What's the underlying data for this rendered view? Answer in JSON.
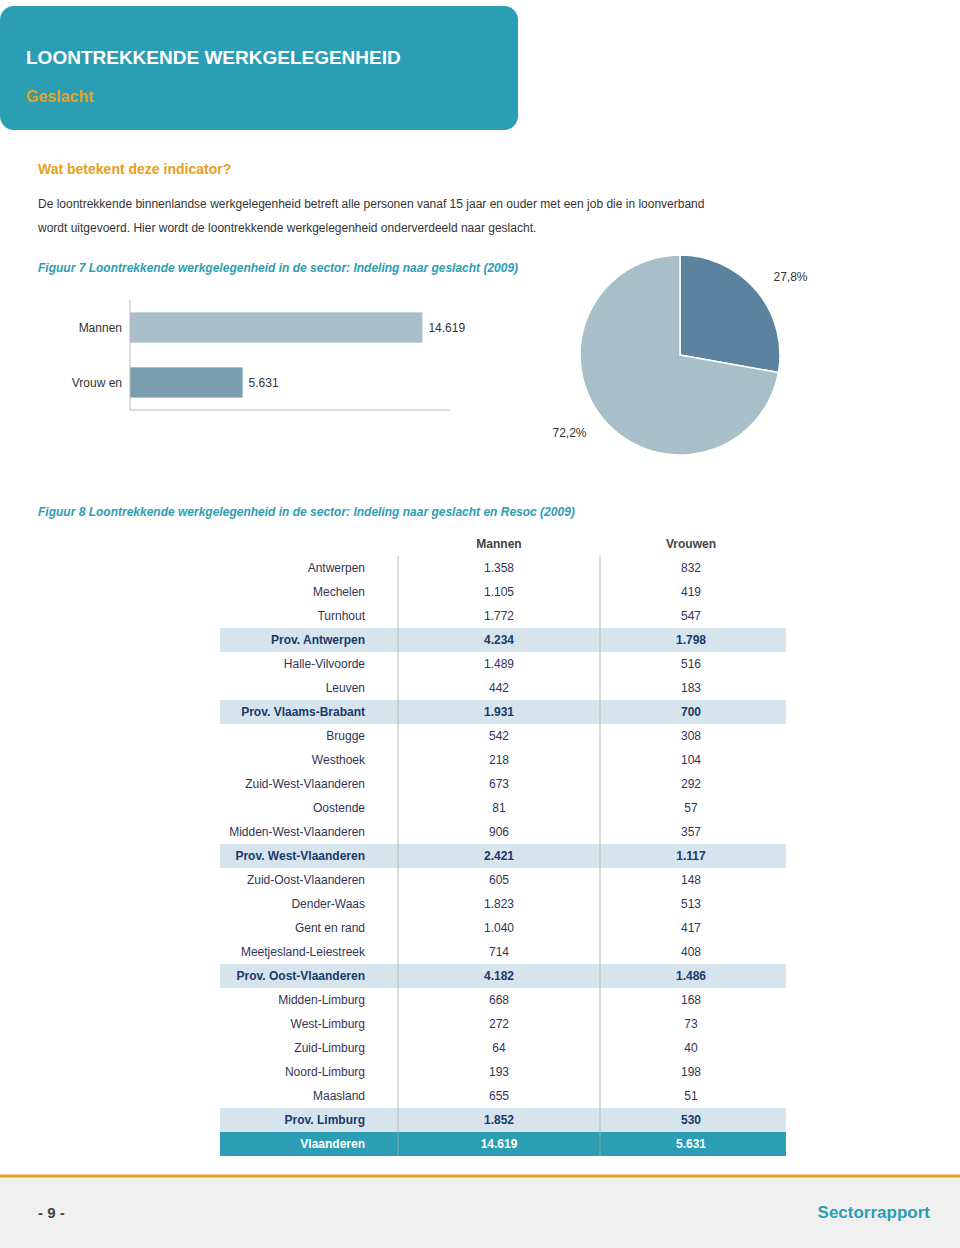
{
  "title": "LOONTREKKENDE WERKGELEGENHEID",
  "subtitle": "Geslacht",
  "annotations": [
    "Wat betekent deze indicator?",
    "De loontrekkende binnenlandse werkgelegenheid betreft alle personen vanaf 15 jaar en ouder met een job die in loonverband",
    "wordt uitgevoerd. Hier wordt de loontrekkende werkgelegenheid onderverdeeld naar geslacht.",
    "- 9 -",
    "Sectorrapport"
  ],
  "chart_data": [
    {
      "type": "bar",
      "title": "Figuur 7  Loontrekkende werkgelegenheid in de sector: Indeling naar geslacht (2009)",
      "orientation": "horizontal",
      "categories": [
        "Mannen",
        "Vrouw en"
      ],
      "values": [
        14619,
        5631
      ],
      "value_labels": [
        "14.619",
        "5.631"
      ],
      "colors": [
        "#A8BFC9",
        "#7A9DB0"
      ],
      "xlim": [
        0,
        16000
      ],
      "data_labels": true,
      "tick_labels": "y",
      "grid": false
    },
    {
      "type": "pie",
      "values": [
        27.8,
        72.2
      ],
      "value_labels": [
        "27,8%",
        "72,2%"
      ],
      "colors": [
        "#5B83A0",
        "#A8BFC9"
      ],
      "data_labels": true
    },
    {
      "type": "table",
      "title": "Figuur 8  Loontrekkende werkgelegenheid in de sector: Indeling naar geslacht en Resoc (2009)",
      "categories": [
        "Antwerpen",
        "Mechelen",
        "Turnhout",
        "Prov. Antwerpen",
        "Halle-Vilvoorde",
        "Leuven",
        "Prov. Vlaams-Brabant",
        "Brugge",
        "Westhoek",
        "Zuid-West-Vlaanderen",
        "Oostende",
        "Midden-West-Vlaanderen",
        "Prov. West-Vlaanderen",
        "Zuid-Oost-Vlaanderen",
        "Dender-Waas",
        "Gent en rand",
        "Meetjesland-Leiestreek",
        "Prov. Oost-Vlaanderen",
        "Midden-Limburg",
        "West-Limburg",
        "Zuid-Limburg",
        "Noord-Limburg",
        "Maasland",
        "Prov. Limburg",
        "Vlaanderen"
      ],
      "colors": [
        null,
        null,
        null,
        "#D6E4ED",
        null,
        null,
        "#D6E4ED",
        null,
        null,
        null,
        null,
        null,
        "#D6E4ED",
        null,
        null,
        null,
        null,
        "#D6E4ED",
        null,
        null,
        null,
        null,
        null,
        "#D6E4ED",
        "#2B9EB3"
      ],
      "series": [
        {
          "name": "Mannen",
          "values": [
            1358,
            1105,
            1772,
            4234,
            1489,
            442,
            1931,
            542,
            218,
            673,
            81,
            906,
            2421,
            605,
            1823,
            1040,
            714,
            4182,
            668,
            272,
            64,
            193,
            655,
            1852,
            14619
          ],
          "value_labels": [
            "1.358",
            "1.105",
            "1.772",
            "4.234",
            "1.489",
            "442",
            "1.931",
            "542",
            "218",
            "673",
            "81",
            "906",
            "2.421",
            "605",
            "1.823",
            "1.040",
            "714",
            "4.182",
            "668",
            "272",
            "64",
            "193",
            "655",
            "1.852",
            "14.619"
          ]
        },
        {
          "name": "Vrouwen",
          "values": [
            832,
            419,
            547,
            1798,
            516,
            183,
            700,
            308,
            104,
            292,
            57,
            357,
            1117,
            148,
            513,
            417,
            408,
            1486,
            168,
            73,
            40,
            198,
            51,
            530,
            5631
          ],
          "value_labels": [
            "832",
            "419",
            "547",
            "1.798",
            "516",
            "183",
            "700",
            "308",
            "104",
            "292",
            "57",
            "357",
            "1.117",
            "148",
            "513",
            "417",
            "408",
            "1.486",
            "168",
            "73",
            "40",
            "198",
            "51",
            "530",
            "5.631"
          ]
        }
      ]
    }
  ]
}
